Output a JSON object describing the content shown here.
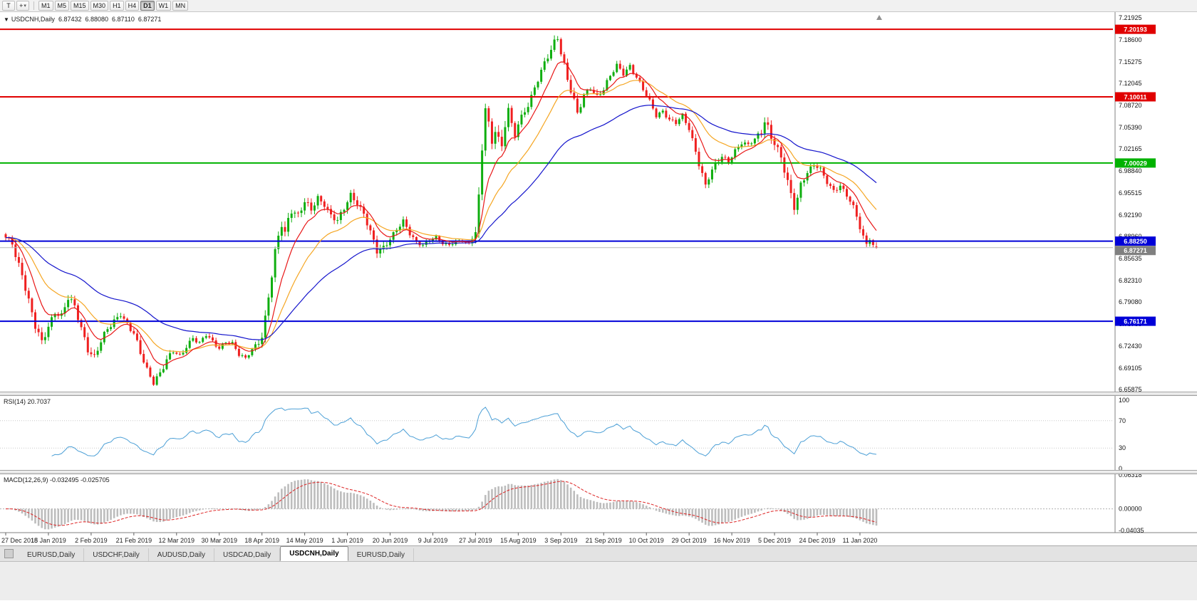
{
  "toolbar": {
    "tool_buttons": [
      {
        "name": "templates-button",
        "glyph": "T",
        "dropdown": false
      },
      {
        "name": "crosshair-tool-button",
        "glyph": "+",
        "dropdown": true
      }
    ],
    "timeframes": [
      "M1",
      "M5",
      "M15",
      "M30",
      "H1",
      "H4",
      "D1",
      "W1",
      "MN"
    ],
    "active_timeframe": "D1"
  },
  "chart": {
    "dropdown_glyph": "▼",
    "title_symbol": "USDCNH,Daily",
    "ohlc": {
      "open": "6.87432",
      "high": "6.88080",
      "low": "6.87110",
      "close": "6.87271"
    }
  },
  "rsi_panel": {
    "label": "RSI(14) 20.7037",
    "axis_labels": [
      "100",
      "70",
      "30",
      "0"
    ]
  },
  "macd_panel": {
    "label": "MACD(12,26,9) -0.032495 -0.025705",
    "axis_labels": [
      "0.06318",
      "0.00000",
      "-0.04035"
    ]
  },
  "x_axis_labels": [
    "27 Dec 2018",
    "15 Jan 2019",
    "2 Feb 2019",
    "21 Feb 2019",
    "12 Mar 2019",
    "30 Mar 2019",
    "18 Apr 2019",
    "14 May 2019",
    "1 Jun 2019",
    "20 Jun 2019",
    "9 Jul 2019",
    "27 Jul 2019",
    "15 Aug 2019",
    "3 Sep 2019",
    "21 Sep 2019",
    "10 Oct 2019",
    "29 Oct 2019",
    "16 Nov 2019",
    "5 Dec 2019",
    "24 Dec 2019",
    "11 Jan 2020"
  ],
  "tabs": {
    "items": [
      "EURUSD,Daily",
      "USDCHF,Daily",
      "AUDUSD,Daily",
      "USDCAD,Daily",
      "USDCNH,Daily",
      "EURUSD,Daily"
    ],
    "active_index": 4
  },
  "chart_data": {
    "type": "candlestick",
    "title": "USDCNH,Daily",
    "symbol": "USDCNH",
    "timeframe": "D1",
    "rsi_value": 20.7037,
    "macd_value": -0.032495,
    "macd_signal_value": -0.025705,
    "y_axis": {
      "top": 7.21925,
      "bottom": 6.65875,
      "labels": [
        "7.21925",
        "7.18600",
        "7.15275",
        "7.12045",
        "7.08720",
        "7.05390",
        "7.02165",
        "6.98840",
        "6.95515",
        "6.92190",
        "6.88960",
        "6.85635",
        "6.82310",
        "6.79080",
        "6.75755",
        "6.72430",
        "6.69105",
        "6.65875"
      ]
    },
    "bars_total": 266,
    "bars_per_label": 13,
    "last_bar": {
      "open": 6.87432,
      "high": 6.8808,
      "low": 6.8711,
      "close": 6.87271
    },
    "close_anchors": [
      [
        0,
        6.886
      ],
      [
        2,
        6.88
      ],
      [
        3,
        6.862
      ],
      [
        5,
        6.835
      ],
      [
        7,
        6.792
      ],
      [
        9,
        6.752
      ],
      [
        11,
        6.728
      ],
      [
        13,
        6.755
      ],
      [
        15,
        6.778
      ],
      [
        17,
        6.77
      ],
      [
        19,
        6.795
      ],
      [
        21,
        6.782
      ],
      [
        23,
        6.752
      ],
      [
        25,
        6.722
      ],
      [
        27,
        6.708
      ],
      [
        29,
        6.73
      ],
      [
        31,
        6.748
      ],
      [
        33,
        6.762
      ],
      [
        35,
        6.775
      ],
      [
        37,
        6.758
      ],
      [
        39,
        6.742
      ],
      [
        41,
        6.712
      ],
      [
        43,
        6.688
      ],
      [
        45,
        6.672
      ],
      [
        47,
        6.685
      ],
      [
        49,
        6.702
      ],
      [
        51,
        6.715
      ],
      [
        53,
        6.708
      ],
      [
        55,
        6.725
      ],
      [
        57,
        6.738
      ],
      [
        59,
        6.728
      ],
      [
        61,
        6.74
      ],
      [
        63,
        6.73
      ],
      [
        65,
        6.722
      ],
      [
        67,
        6.732
      ],
      [
        69,
        6.728
      ],
      [
        71,
        6.71
      ],
      [
        73,
        6.705
      ],
      [
        75,
        6.72
      ],
      [
        77,
        6.733
      ],
      [
        78,
        6.74
      ],
      [
        79,
        6.765
      ],
      [
        80,
        6.798
      ],
      [
        81,
        6.828
      ],
      [
        82,
        6.862
      ],
      [
        83,
        6.888
      ],
      [
        84,
        6.908
      ],
      [
        85,
        6.895
      ],
      [
        86,
        6.918
      ],
      [
        87,
        6.932
      ],
      [
        89,
        6.922
      ],
      [
        91,
        6.94
      ],
      [
        93,
        6.928
      ],
      [
        95,
        6.948
      ],
      [
        97,
        6.94
      ],
      [
        99,
        6.922
      ],
      [
        101,
        6.912
      ],
      [
        103,
        6.93
      ],
      [
        105,
        6.952
      ],
      [
        107,
        6.942
      ],
      [
        109,
        6.925
      ],
      [
        111,
        6.895
      ],
      [
        113,
        6.865
      ],
      [
        115,
        6.872
      ],
      [
        117,
        6.888
      ],
      [
        119,
        6.902
      ],
      [
        121,
        6.912
      ],
      [
        123,
        6.892
      ],
      [
        125,
        6.88
      ],
      [
        127,
        6.878
      ],
      [
        129,
        6.885
      ],
      [
        131,
        6.888
      ],
      [
        133,
        6.878
      ],
      [
        135,
        6.876
      ],
      [
        137,
        6.883
      ],
      [
        139,
        6.884
      ],
      [
        141,
        6.878
      ],
      [
        143,
        6.895
      ],
      [
        144,
        6.942
      ],
      [
        145,
        7.018
      ],
      [
        146,
        7.088
      ],
      [
        147,
        7.06
      ],
      [
        148,
        7.032
      ],
      [
        149,
        7.058
      ],
      [
        150,
        7.04
      ],
      [
        151,
        7.022
      ],
      [
        152,
        7.058
      ],
      [
        153,
        7.08
      ],
      [
        154,
        7.052
      ],
      [
        155,
        7.04
      ],
      [
        156,
        7.06
      ],
      [
        158,
        7.08
      ],
      [
        160,
        7.102
      ],
      [
        162,
        7.126
      ],
      [
        164,
        7.148
      ],
      [
        166,
        7.17
      ],
      [
        167,
        7.183
      ],
      [
        168,
        7.192
      ],
      [
        169,
        7.17
      ],
      [
        170,
        7.15
      ],
      [
        171,
        7.128
      ],
      [
        172,
        7.11
      ],
      [
        173,
        7.092
      ],
      [
        174,
        7.072
      ],
      [
        175,
        7.086
      ],
      [
        176,
        7.1
      ],
      [
        178,
        7.115
      ],
      [
        180,
        7.102
      ],
      [
        182,
        7.112
      ],
      [
        184,
        7.13
      ],
      [
        186,
        7.146
      ],
      [
        188,
        7.136
      ],
      [
        190,
        7.148
      ],
      [
        192,
        7.13
      ],
      [
        194,
        7.11
      ],
      [
        196,
        7.092
      ],
      [
        198,
        7.072
      ],
      [
        200,
        7.08
      ],
      [
        202,
        7.066
      ],
      [
        204,
        7.06
      ],
      [
        206,
        7.07
      ],
      [
        208,
        7.052
      ],
      [
        210,
        7.02
      ],
      [
        212,
        6.984
      ],
      [
        213,
        6.966
      ],
      [
        214,
        6.978
      ],
      [
        216,
        6.996
      ],
      [
        218,
        7.01
      ],
      [
        220,
        7.004
      ],
      [
        222,
        7.02
      ],
      [
        224,
        7.03
      ],
      [
        226,
        7.026
      ],
      [
        228,
        7.036
      ],
      [
        230,
        7.05
      ],
      [
        231,
        7.066
      ],
      [
        232,
        7.056
      ],
      [
        233,
        7.04
      ],
      [
        234,
        7.03
      ],
      [
        236,
        7.005
      ],
      [
        238,
        6.97
      ],
      [
        240,
        6.936
      ],
      [
        241,
        6.95
      ],
      [
        242,
        6.97
      ],
      [
        244,
        6.986
      ],
      [
        246,
        6.996
      ],
      [
        248,
        6.99
      ],
      [
        250,
        6.972
      ],
      [
        252,
        6.96
      ],
      [
        254,
        6.966
      ],
      [
        256,
        6.95
      ],
      [
        258,
        6.932
      ],
      [
        259,
        6.92
      ],
      [
        260,
        6.904
      ],
      [
        261,
        6.89
      ],
      [
        262,
        6.88
      ],
      [
        263,
        6.888
      ],
      [
        264,
        6.876
      ],
      [
        265,
        6.8727
      ]
    ],
    "volatility_anchors": [
      [
        0,
        0.006
      ],
      [
        7,
        0.01
      ],
      [
        15,
        0.008
      ],
      [
        25,
        0.009
      ],
      [
        35,
        0.007
      ],
      [
        45,
        0.008
      ],
      [
        55,
        0.006
      ],
      [
        65,
        0.005
      ],
      [
        75,
        0.004
      ],
      [
        79,
        0.011
      ],
      [
        85,
        0.01
      ],
      [
        95,
        0.007
      ],
      [
        105,
        0.007
      ],
      [
        113,
        0.008
      ],
      [
        123,
        0.005
      ],
      [
        133,
        0.0035
      ],
      [
        141,
        0.003
      ],
      [
        144,
        0.013
      ],
      [
        150,
        0.013
      ],
      [
        158,
        0.008
      ],
      [
        166,
        0.008
      ],
      [
        170,
        0.01
      ],
      [
        178,
        0.007
      ],
      [
        190,
        0.006
      ],
      [
        200,
        0.005
      ],
      [
        208,
        0.006
      ],
      [
        212,
        0.009
      ],
      [
        220,
        0.005
      ],
      [
        228,
        0.005
      ],
      [
        231,
        0.009
      ],
      [
        238,
        0.01
      ],
      [
        246,
        0.005
      ],
      [
        254,
        0.005
      ],
      [
        260,
        0.007
      ],
      [
        265,
        0.004
      ]
    ],
    "hlines": [
      {
        "price": 7.20193,
        "label": "7.20193",
        "color": "#e00000",
        "width": 2
      },
      {
        "price": 7.10011,
        "label": "7.10011",
        "color": "#e00000",
        "width": 2
      },
      {
        "price": 7.00029,
        "label": "7.00029",
        "color": "#00b200",
        "width": 2
      },
      {
        "price": 6.8825,
        "label": "6.88250",
        "color": "#0000d8",
        "width": 2
      },
      {
        "price": 6.76171,
        "label": "6.76171",
        "color": "#0000d8",
        "width": 2
      }
    ],
    "current_price": {
      "value": 6.87271,
      "label": "6.87271",
      "color": "#808080"
    },
    "moving_averages": [
      {
        "type": "ema",
        "period": 21,
        "color": "#f5a623"
      },
      {
        "type": "ema",
        "period": 9,
        "color": "#e81717"
      },
      {
        "type": "ema",
        "period": 50,
        "color": "#1414cc"
      }
    ],
    "candle_colors": {
      "up": "#0fae0f",
      "down": "#ef2020"
    },
    "rsi": {
      "period": 14,
      "color": "#4b9fd6",
      "levels": [
        70,
        30
      ],
      "range": [
        0,
        100
      ]
    },
    "macd": {
      "fast": 12,
      "slow": 26,
      "signal": 9,
      "hist_color": "#bdbdbd",
      "signal_color": "#dd2222",
      "range": [
        -0.04035,
        0.06318
      ]
    }
  }
}
